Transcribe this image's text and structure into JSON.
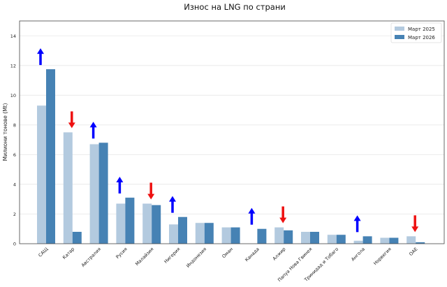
{
  "chart_data": {
    "type": "bar",
    "title": "Износ на LNG по страни",
    "xlabel": "",
    "ylabel": "Милиони тонове (Mt)",
    "ylim": [
      0,
      15
    ],
    "yticks": [
      0,
      2,
      4,
      6,
      8,
      10,
      12,
      14
    ],
    "grid": true,
    "legend_position": "top-right",
    "categories": [
      "САЩ",
      "Катар",
      "Австралия",
      "Русия",
      "Малайзия",
      "Нигерия",
      "Индонезия",
      "Оман",
      "Канада",
      "Алжир",
      "Папуа Нова Гвинея",
      "Тринидад и Тобаго",
      "Ангола",
      "Норвегия",
      "ОАЕ"
    ],
    "series": [
      {
        "name": "Март 2025",
        "color": "#b3cadf",
        "values": [
          9.3,
          7.5,
          6.7,
          2.7,
          2.7,
          1.3,
          1.4,
          1.1,
          0.0,
          1.1,
          0.8,
          0.6,
          0.2,
          0.4,
          0.5
        ]
      },
      {
        "name": "Март 2026",
        "color": "#4682b4",
        "values": [
          11.75,
          0.8,
          6.8,
          3.1,
          2.6,
          1.8,
          1.4,
          1.1,
          1.0,
          0.9,
          0.8,
          0.6,
          0.5,
          0.4,
          0.1
        ]
      }
    ],
    "change_arrows": [
      "up",
      "down",
      "up",
      "up",
      "down",
      "up",
      null,
      null,
      "up",
      "down",
      null,
      null,
      "up",
      null,
      "down"
    ],
    "arrow_colors": {
      "up": "#0000ff",
      "down": "#ee1111"
    }
  }
}
